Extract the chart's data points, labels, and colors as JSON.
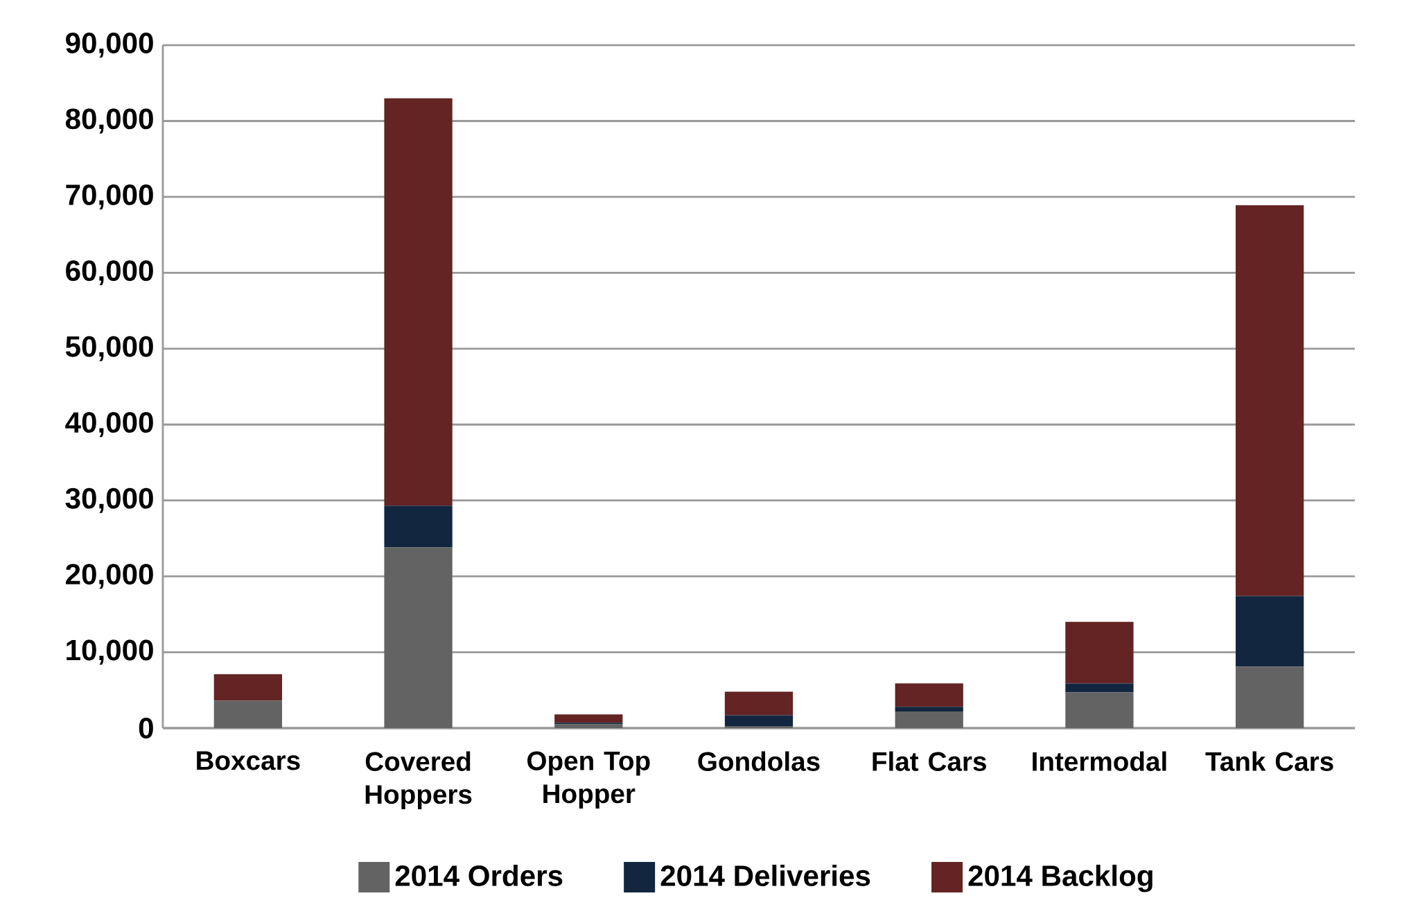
{
  "chart_data": {
    "type": "bar",
    "stacked": true,
    "categories": [
      "Boxcars",
      "Covered Hoppers",
      "Open Top Hopper",
      "Gondolas",
      "Flat Cars",
      "Intermodal",
      "Tank Cars"
    ],
    "series": [
      {
        "name": "2014 Orders",
        "color": "#636363",
        "values": [
          3600,
          23800,
          500,
          200,
          2200,
          4700,
          8100
        ]
      },
      {
        "name": "2014 Deliveries",
        "color": "#12263f",
        "values": [
          0,
          5500,
          200,
          1500,
          600,
          1200,
          9300
        ]
      },
      {
        "name": "2014 Backlog",
        "color": "#632423",
        "values": [
          3500,
          53700,
          1100,
          3100,
          3100,
          8100,
          51500
        ]
      }
    ],
    "ylim": [
      0,
      90000
    ],
    "yticks": [
      {
        "value": 0,
        "label": "0"
      },
      {
        "value": 10000,
        "label": "10,000"
      },
      {
        "value": 20000,
        "label": "20,000"
      },
      {
        "value": 30000,
        "label": "30,000"
      },
      {
        "value": 40000,
        "label": "40,000"
      },
      {
        "value": 50000,
        "label": "50,000"
      },
      {
        "value": 60000,
        "label": "60,000"
      },
      {
        "value": 70000,
        "label": "70,000"
      },
      {
        "value": 80000,
        "label": "80,000"
      },
      {
        "value": 90000,
        "label": "90,000"
      }
    ],
    "grid": "y",
    "legend": "bottom"
  }
}
